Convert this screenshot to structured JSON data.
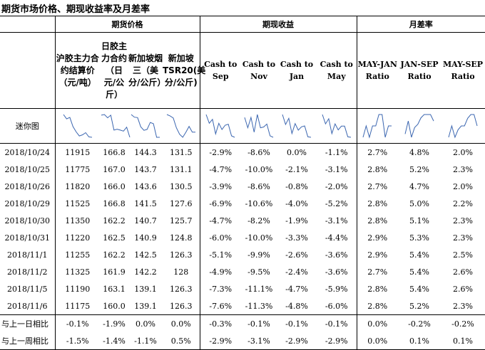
{
  "title": "期货市场价格、期现收益率及月差率",
  "groups": {
    "futures_price": "期货价格",
    "spot_futures_return": "期现收益",
    "month_spread": "月差率"
  },
  "columns": [
    "沪胶主力合约结算价（元/吨）",
    "日胶主力合约（日元/公斤）",
    "新加坡烟三（美分/公斤）",
    "新加坡TSR20(美分/公斤)",
    "Cash to Sep",
    "Cash to Nov",
    "Cash to Jan",
    "Cash to May",
    "MAY-JAN Ratio",
    "JAN-SEP Ratio",
    "MAY-SEP Ratio"
  ],
  "sparkline_label": "迷你图",
  "rows": [
    {
      "date": "2018/10/24",
      "values": [
        "11915",
        "166.8",
        "144.3",
        "131.5",
        "-2.9%",
        "-8.6%",
        "0.0%",
        "-1.1%",
        "2.7%",
        "4.8%",
        "2.0%"
      ]
    },
    {
      "date": "2018/10/25",
      "values": [
        "11775",
        "167.0",
        "143.7",
        "131.1",
        "-4.7%",
        "-10.0%",
        "-2.1%",
        "-3.1%",
        "2.8%",
        "5.2%",
        "2.3%"
      ]
    },
    {
      "date": "2018/10/26",
      "values": [
        "11820",
        "166.0",
        "143.6",
        "130.5",
        "-3.9%",
        "-8.6%",
        "-0.8%",
        "-2.0%",
        "2.7%",
        "4.7%",
        "2.0%"
      ]
    },
    {
      "date": "2018/10/29",
      "values": [
        "11525",
        "166.8",
        "141.5",
        "127.6",
        "-6.9%",
        "-10.6%",
        "-4.0%",
        "-5.2%",
        "2.8%",
        "5.0%",
        "2.2%"
      ]
    },
    {
      "date": "2018/10/30",
      "values": [
        "11350",
        "162.2",
        "140.7",
        "125.7",
        "-4.7%",
        "-8.2%",
        "-1.9%",
        "-3.1%",
        "2.8%",
        "5.1%",
        "2.3%"
      ]
    },
    {
      "date": "2018/10/31",
      "values": [
        "11220",
        "162.5",
        "140.9",
        "124.8",
        "-6.0%",
        "-10.0%",
        "-3.3%",
        "-4.4%",
        "2.9%",
        "5.3%",
        "2.3%"
      ]
    },
    {
      "date": "2018/11/1",
      "values": [
        "11255",
        "162.2",
        "142.5",
        "126.3",
        "-5.1%",
        "-9.9%",
        "-2.6%",
        "-3.6%",
        "2.9%",
        "5.4%",
        "2.5%"
      ]
    },
    {
      "date": "2018/11/2",
      "values": [
        "11325",
        "161.9",
        "142.2",
        "128",
        "-4.9%",
        "-9.5%",
        "-2.4%",
        "-3.6%",
        "2.7%",
        "5.4%",
        "2.6%"
      ]
    },
    {
      "date": "2018/11/5",
      "values": [
        "11190",
        "163.1",
        "139.1",
        "126.3",
        "-7.3%",
        "-11.1%",
        "-4.7%",
        "-5.9%",
        "2.8%",
        "5.4%",
        "2.6%"
      ]
    },
    {
      "date": "2018/11/6",
      "values": [
        "11175",
        "160.0",
        "139.1",
        "126.3",
        "-7.6%",
        "-11.3%",
        "-4.8%",
        "-6.0%",
        "2.8%",
        "5.2%",
        "2.3%"
      ]
    }
  ],
  "footer": [
    {
      "label": "与上一日相比",
      "values": [
        "-0.1%",
        "-1.9%",
        "0.0%",
        "0.0%",
        "-0.3%",
        "-0.1%",
        "-0.1%",
        "-0.1%",
        "0.0%",
        "-0.2%",
        "-0.2%"
      ]
    },
    {
      "label": "与上一周相比",
      "values": [
        "-1.5%",
        "-1.4%",
        "-1.1%",
        "0.5%",
        "-2.9%",
        "-3.1%",
        "-2.9%",
        "-2.9%",
        "0.0%",
        "0.1%",
        "0.1%"
      ]
    }
  ],
  "sparkline_color": "#3b66b0"
}
